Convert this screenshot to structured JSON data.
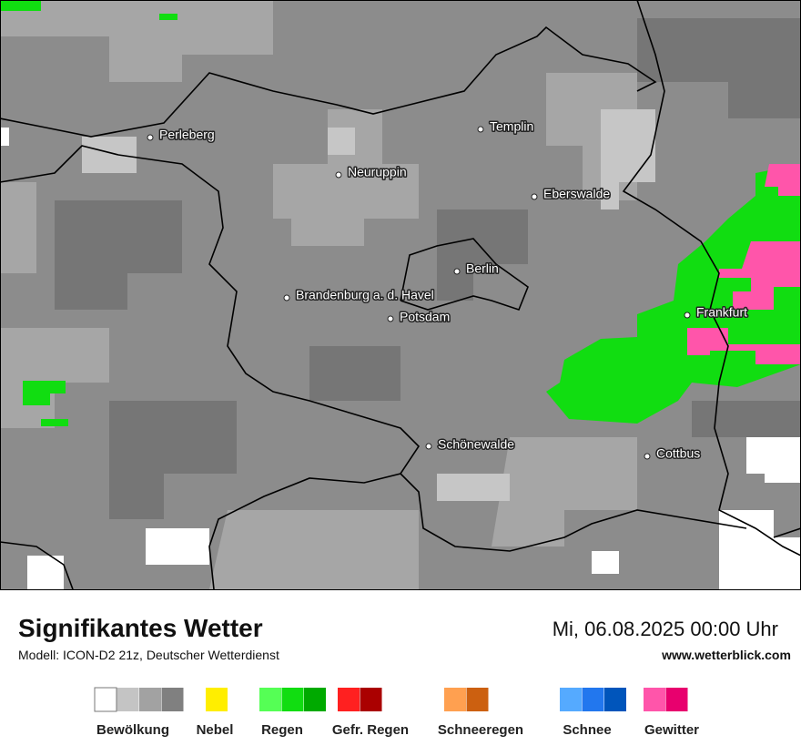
{
  "map": {
    "cities": [
      "Perleberg",
      "Neuruppin",
      "Templin",
      "Eberswalde",
      "Berlin",
      "Brandenburg a. d. Havel",
      "Potsdam",
      "Frankfurt",
      "Schönewalde",
      "Cottbus"
    ]
  },
  "footer": {
    "title": "Signifikantes Wetter",
    "subtitle": "Modell: ICON-D2 21z, Deutscher Wetterdienst",
    "datetime": "Mi, 06.08.2025 00:00 Uhr",
    "website": "www.wetterblick.com"
  },
  "legend": [
    {
      "label": "Bewölkung",
      "colors": [
        "#ffffff",
        "#c4c4c4",
        "#a2a2a2",
        "#808080"
      ]
    },
    {
      "label": "Nebel",
      "colors": [
        "#ffee00"
      ]
    },
    {
      "label": "Regen",
      "colors": [
        "#55ff55",
        "#11dd11",
        "#00aa00"
      ]
    },
    {
      "label": "Gefr. Regen",
      "colors": [
        "#ff2020",
        "#aa0000"
      ]
    },
    {
      "label": "Schneeregen",
      "colors": [
        "#ffa050",
        "#cc6010"
      ]
    },
    {
      "label": "Schnee",
      "colors": [
        "#55aaff",
        "#2277ee",
        "#0055bb"
      ]
    },
    {
      "label": "Gewitter",
      "colors": [
        "#ff55aa",
        "#e8006e"
      ]
    }
  ]
}
